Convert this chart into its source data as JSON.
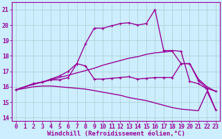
{
  "background_color": "#cceeff",
  "line_color": "#990099",
  "grid_color": "#aacccc",
  "xlabel": "Windchill (Refroidissement éolien,°C)",
  "xlim": [
    -0.5,
    23.5
  ],
  "ylim": [
    13.8,
    21.5
  ],
  "yticks": [
    14,
    15,
    16,
    17,
    18,
    19,
    20,
    21
  ],
  "xticks": [
    0,
    1,
    2,
    3,
    4,
    5,
    6,
    7,
    8,
    9,
    10,
    11,
    12,
    13,
    14,
    15,
    16,
    17,
    18,
    19,
    20,
    21,
    22,
    23
  ],
  "lines": [
    {
      "x": [
        0,
        1,
        2,
        3,
        4,
        5,
        6,
        7,
        8,
        9,
        10,
        11,
        12,
        13,
        14,
        15,
        16,
        17,
        18,
        19,
        20,
        21,
        22,
        23
      ],
      "y": [
        15.8,
        15.9,
        16.0,
        16.05,
        16.05,
        16.0,
        15.95,
        15.9,
        15.85,
        15.75,
        15.65,
        15.55,
        15.45,
        15.3,
        15.2,
        15.1,
        14.95,
        14.8,
        14.65,
        14.55,
        14.5,
        14.45,
        15.7,
        14.5
      ],
      "marker": false,
      "linewidth": 1.0
    },
    {
      "x": [
        0,
        1,
        2,
        3,
        4,
        5,
        6,
        7,
        8,
        9,
        10,
        11,
        12,
        13,
        14,
        15,
        16,
        17,
        18,
        19,
        20,
        21,
        22,
        23
      ],
      "y": [
        15.8,
        16.0,
        16.15,
        16.3,
        16.45,
        16.6,
        16.75,
        16.9,
        17.05,
        17.2,
        17.4,
        17.55,
        17.7,
        17.85,
        17.95,
        18.1,
        18.2,
        18.25,
        18.3,
        17.5,
        17.5,
        16.5,
        16.0,
        15.7
      ],
      "marker": false,
      "linewidth": 1.0
    },
    {
      "x": [
        0,
        2,
        3,
        4,
        5,
        6,
        7,
        8,
        9,
        10,
        11,
        12,
        13,
        14,
        15,
        16,
        17,
        18,
        19,
        20,
        21,
        22,
        23
      ],
      "y": [
        15.8,
        16.2,
        16.3,
        16.45,
        16.45,
        16.6,
        17.5,
        17.35,
        16.5,
        16.5,
        16.55,
        16.6,
        16.65,
        16.5,
        16.55,
        16.6,
        16.6,
        16.6,
        17.5,
        17.5,
        16.4,
        15.9,
        15.7
      ],
      "marker": true,
      "linewidth": 1.0,
      "markersize": 2.8
    },
    {
      "x": [
        0,
        2,
        3,
        4,
        5,
        6,
        7,
        8,
        9,
        10,
        11,
        12,
        13,
        14,
        15,
        16,
        17,
        18,
        19,
        20,
        21,
        22,
        23
      ],
      "y": [
        15.8,
        16.2,
        16.3,
        16.5,
        16.7,
        17.0,
        17.5,
        18.8,
        19.8,
        19.8,
        19.95,
        20.1,
        20.15,
        20.0,
        20.1,
        21.0,
        18.35,
        18.35,
        18.3,
        16.35,
        16.2,
        15.85,
        14.5
      ],
      "marker": true,
      "linewidth": 1.0,
      "markersize": 2.8
    }
  ],
  "xlabel_fontsize": 6.5,
  "tick_fontsize": 6.0
}
